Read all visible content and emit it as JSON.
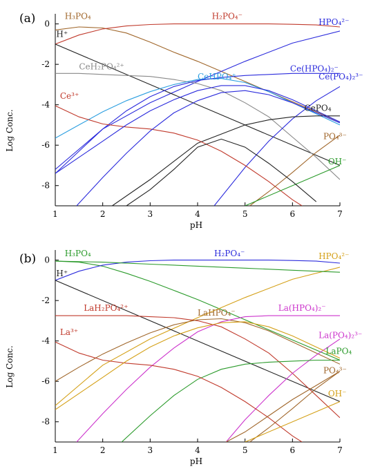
{
  "chart_data": [
    {
      "type": "line",
      "panel_label": "(a)",
      "xlabel": "pH",
      "ylabel": "Log Conc.",
      "xlim": [
        1,
        7
      ],
      "ylim": [
        -9,
        0.5
      ],
      "xticks": [
        1,
        2,
        3,
        4,
        5,
        6,
        7
      ],
      "yticks": [
        0,
        -2,
        -4,
        -6,
        -8
      ],
      "series": [
        {
          "name": "H₃PO₄",
          "color": "#a0662a",
          "label_pos": [
            1.2,
            0.25
          ],
          "x": [
            1,
            1.5,
            2,
            2.5,
            3,
            3.5,
            4,
            4.5,
            5,
            5.5,
            6,
            6.5,
            7
          ],
          "y": [
            -0.3,
            -0.15,
            -0.2,
            -0.45,
            -0.9,
            -1.4,
            -1.85,
            -2.35,
            -2.85,
            -3.35,
            -3.85,
            -4.35,
            -4.85
          ]
        },
        {
          "name": "H₂PO₄⁻",
          "color": "#c0392b",
          "label_pos": [
            4.3,
            0.25
          ],
          "x": [
            1,
            1.5,
            2,
            2.5,
            3,
            3.5,
            4,
            4.5,
            5,
            5.5,
            6,
            6.5,
            7
          ],
          "y": [
            -1.0,
            -0.55,
            -0.25,
            -0.1,
            -0.03,
            0,
            0,
            0,
            0,
            0,
            -0.02,
            -0.05,
            -0.15
          ]
        },
        {
          "name": "HPO₄²⁻",
          "color": "#2a2adc",
          "label_pos": [
            6.55,
            -0.05
          ],
          "x": [
            1,
            2,
            3,
            4,
            5,
            6,
            7
          ],
          "y": [
            -7.2,
            -5.2,
            -3.9,
            -2.85,
            -1.85,
            -0.95,
            -0.35
          ]
        },
        {
          "name": "H⁺",
          "color": "#222222",
          "label_pos": [
            1.02,
            -0.65
          ],
          "x": [
            1,
            7
          ],
          "y": [
            -1.0,
            -7.0
          ]
        },
        {
          "name": "CeH₂PO₄²⁺",
          "color": "#888888",
          "label_pos": [
            1.5,
            -2.25
          ],
          "x": [
            1,
            1.5,
            2,
            2.5,
            3,
            3.5,
            4,
            4.5,
            5,
            5.5,
            6,
            6.5,
            7
          ],
          "y": [
            -2.45,
            -2.45,
            -2.5,
            -2.55,
            -2.6,
            -2.75,
            -2.95,
            -3.3,
            -3.9,
            -4.6,
            -5.6,
            -6.6,
            -7.7
          ]
        },
        {
          "name": "CeHPO₄⁺",
          "color": "#2a9ee0",
          "label_pos": [
            4.0,
            -2.75
          ],
          "x": [
            1,
            1.5,
            2,
            2.5,
            3,
            3.5,
            4,
            4.5,
            5,
            5.5,
            6,
            6.5,
            7
          ],
          "y": [
            -5.65,
            -5.0,
            -4.35,
            -3.8,
            -3.35,
            -3.0,
            -2.75,
            -2.7,
            -2.9,
            -3.35,
            -3.9,
            -4.45,
            -5.0
          ]
        },
        {
          "name": "Ce(HPO₄)₂⁻",
          "color": "#2a2adc",
          "label_pos": [
            5.95,
            -2.35
          ],
          "x": [
            1,
            1.5,
            2,
            2.5,
            3,
            3.5,
            4,
            4.5,
            5,
            5.5,
            6,
            6.5,
            7
          ],
          "y": [
            -7.4,
            -6.3,
            -5.2,
            -4.3,
            -3.6,
            -3.1,
            -2.8,
            -2.65,
            -2.55,
            -2.5,
            -2.45,
            -2.45,
            -2.45
          ]
        },
        {
          "name": "Ce(PO₄)₂³⁻",
          "color": "#2a2adc",
          "label_pos": [
            6.55,
            -2.75
          ],
          "x": [
            4.35,
            5,
            5.5,
            6,
            6.5,
            7
          ],
          "y": [
            -9,
            -7.1,
            -5.8,
            -4.7,
            -3.8,
            -3.1
          ]
        },
        {
          "name": "CePO₄",
          "color": "#222222",
          "label_pos": [
            6.25,
            -4.3
          ],
          "x": [
            2.2,
            3,
            4,
            5,
            5.5,
            6,
            6.5,
            7
          ],
          "y": [
            -9,
            -7.7,
            -5.9,
            -5.0,
            -4.75,
            -4.6,
            -4.55,
            -4.55
          ]
        },
        {
          "name": "Ce³⁺",
          "color": "#c0392b",
          "label_pos": [
            1.1,
            -3.7
          ],
          "x": [
            1,
            1.5,
            2,
            2.5,
            3,
            3.5,
            4,
            4.5,
            5,
            5.5,
            6,
            6.2
          ],
          "y": [
            -4.05,
            -4.6,
            -4.95,
            -5.1,
            -5.2,
            -5.4,
            -5.75,
            -6.3,
            -7.0,
            -7.8,
            -8.7,
            -9
          ]
        },
        {
          "name": "PO₄³⁻",
          "color": "#a0662a",
          "label_pos": [
            6.65,
            -5.7
          ],
          "x": [
            5.1,
            5.5,
            6,
            6.5,
            7
          ],
          "y": [
            -9,
            -8.3,
            -7.35,
            -6.35,
            -5.5
          ]
        },
        {
          "name": "OH⁻",
          "color": "#2a9a2a",
          "label_pos": [
            6.75,
            -6.95
          ],
          "x": [
            5,
            7
          ],
          "y": [
            -9,
            -7.0
          ]
        },
        {
          "name": "",
          "color": "#222222",
          "label_pos": null,
          "x": [
            2.5,
            3,
            3.5,
            4,
            4.5,
            5,
            5.5,
            6,
            6.5
          ],
          "y": [
            -9,
            -8.2,
            -7.2,
            -6.1,
            -5.7,
            -6.1,
            -6.9,
            -7.8,
            -8.8
          ]
        },
        {
          "name": "",
          "color": "#2a2adc",
          "label_pos": null,
          "x": [
            1.45,
            2,
            2.5,
            3,
            3.5,
            4,
            4.5,
            5,
            5.5,
            6,
            6.5,
            7
          ],
          "y": [
            -9,
            -7.6,
            -6.4,
            -5.3,
            -4.4,
            -3.8,
            -3.4,
            -3.3,
            -3.5,
            -3.9,
            -4.4,
            -4.9
          ]
        },
        {
          "name": "",
          "color": "#2a2adc",
          "label_pos": null,
          "x": [
            1.0,
            1.5,
            2,
            2.5,
            3,
            3.5,
            4,
            4.5,
            5,
            5.5,
            6,
            6.5,
            7
          ],
          "y": [
            -7.4,
            -6.6,
            -5.8,
            -5.0,
            -4.3,
            -3.75,
            -3.3,
            -3.05,
            -3.05,
            -3.3,
            -3.75,
            -4.3,
            -4.85
          ]
        }
      ]
    },
    {
      "type": "line",
      "panel_label": "(b)",
      "xlabel": "pH",
      "ylabel": "Log Conc.",
      "xlim": [
        1,
        7
      ],
      "ylim": [
        -9,
        0.5
      ],
      "xticks": [
        1,
        2,
        3,
        4,
        5,
        6,
        7
      ],
      "yticks": [
        0,
        -2,
        -4,
        -6,
        -8
      ],
      "series": [
        {
          "name": "H₃PO₄",
          "color": "#2a9a2a",
          "label_pos": [
            1.2,
            0.2
          ],
          "x": [
            1,
            1.5,
            2,
            2.5,
            3,
            3.5,
            4,
            4.5,
            5,
            5.5,
            6,
            6.5,
            7
          ],
          "y": [
            -0.05,
            -0.1,
            -0.3,
            -0.65,
            -1.05,
            -1.5,
            -1.95,
            -2.45,
            -2.95,
            -3.45,
            -3.95,
            -4.45,
            -4.95
          ]
        },
        {
          "name": "H₂PO₄⁻",
          "color": "#2a2adc",
          "label_pos": [
            4.35,
            0.2
          ],
          "x": [
            1,
            1.5,
            2,
            2.5,
            3,
            3.5,
            4,
            4.5,
            5,
            5.5,
            6,
            6.5,
            7
          ],
          "y": [
            -1.0,
            -0.55,
            -0.25,
            -0.1,
            -0.03,
            0,
            0,
            0,
            0,
            0,
            -0.02,
            -0.05,
            -0.15
          ]
        },
        {
          "name": "HPO₄²⁻",
          "color": "#d4a017",
          "label_pos": [
            6.55,
            0.05
          ],
          "x": [
            1,
            2,
            3,
            4,
            5,
            6,
            7
          ],
          "y": [
            -7.2,
            -5.2,
            -3.9,
            -2.85,
            -1.85,
            -0.95,
            -0.35
          ]
        },
        {
          "name": "H⁺",
          "color": "#222222",
          "label_pos": [
            1.02,
            -0.8
          ],
          "x": [
            1,
            7
          ],
          "y": [
            -1.0,
            -7.0
          ]
        },
        {
          "name": "LaH₂PO₄²⁺",
          "color": "#c0392b",
          "label_pos": [
            1.6,
            -2.5
          ],
          "x": [
            1,
            1.5,
            2,
            2.5,
            3,
            3.5,
            4,
            4.5,
            5,
            5.5,
            6,
            6.5,
            7
          ],
          "y": [
            -2.75,
            -2.75,
            -2.75,
            -2.75,
            -2.8,
            -2.85,
            -3.0,
            -3.3,
            -3.9,
            -4.6,
            -5.6,
            -6.7,
            -7.8
          ]
        },
        {
          "name": "LaHPO₄⁻",
          "color": "#a0662a",
          "label_pos": [
            4.0,
            -2.75
          ],
          "x": [
            1,
            1.5,
            2,
            2.5,
            3,
            3.5,
            4,
            4.5,
            5,
            5.5,
            6,
            6.5,
            7
          ],
          "y": [
            -6.0,
            -5.3,
            -4.65,
            -4.1,
            -3.6,
            -3.2,
            -2.95,
            -2.9,
            -3.1,
            -3.5,
            -4.05,
            -4.6,
            -5.15
          ]
        },
        {
          "name": "La(HPO₄)₂⁻",
          "color": "#cc33cc",
          "label_pos": [
            5.7,
            -2.5
          ],
          "x": [
            1.45,
            2,
            2.5,
            3,
            3.5,
            4,
            4.5,
            5,
            5.5,
            6,
            6.5,
            7
          ],
          "y": [
            -9,
            -7.6,
            -6.4,
            -5.3,
            -4.35,
            -3.55,
            -3.05,
            -2.8,
            -2.75,
            -2.75,
            -2.75,
            -2.75
          ]
        },
        {
          "name": "La(PO₄)₂³⁻",
          "color": "#cc33cc",
          "label_pos": [
            6.55,
            -3.85
          ],
          "x": [
            4.6,
            5,
            5.5,
            6,
            6.5,
            7
          ],
          "y": [
            -9,
            -7.9,
            -6.7,
            -5.6,
            -4.7,
            -3.9
          ]
        },
        {
          "name": "LaPO₄",
          "color": "#2a9a2a",
          "label_pos": [
            6.7,
            -4.65
          ],
          "x": [
            2.4,
            3,
            3.5,
            4,
            4.5,
            5,
            5.5,
            6,
            6.5,
            7
          ],
          "y": [
            -9,
            -7.7,
            -6.7,
            -5.9,
            -5.4,
            -5.15,
            -5.05,
            -5.0,
            -4.95,
            -4.95
          ]
        },
        {
          "name": "La³⁺",
          "color": "#c0392b",
          "label_pos": [
            1.1,
            -3.7
          ],
          "x": [
            1,
            1.5,
            2,
            2.5,
            3,
            3.5,
            4,
            4.5,
            5,
            5.5,
            6,
            6.2
          ],
          "y": [
            -4.05,
            -4.6,
            -4.95,
            -5.1,
            -5.2,
            -5.4,
            -5.75,
            -6.3,
            -7.0,
            -7.8,
            -8.7,
            -9
          ]
        },
        {
          "name": "PO₄³⁻",
          "color": "#a0662a",
          "label_pos": [
            6.65,
            -5.6
          ],
          "x": [
            5.1,
            5.5,
            6,
            6.5,
            7
          ],
          "y": [
            -9,
            -8.3,
            -7.35,
            -6.35,
            -5.5
          ]
        },
        {
          "name": "OH⁻",
          "color": "#d4a017",
          "label_pos": [
            6.75,
            -6.75
          ],
          "x": [
            5,
            7
          ],
          "y": [
            -9,
            -7.0
          ]
        },
        {
          "name": "",
          "color": "#d4a017",
          "label_pos": null,
          "x": [
            1,
            1.5,
            2,
            2.5,
            3,
            3.5,
            4,
            4.5,
            5,
            5.5,
            6,
            6.5,
            7
          ],
          "y": [
            -7.4,
            -6.6,
            -5.8,
            -5.0,
            -4.3,
            -3.75,
            -3.35,
            -3.1,
            -3.05,
            -3.3,
            -3.75,
            -4.3,
            -4.85
          ]
        },
        {
          "name": "",
          "color": "#a0662a",
          "label_pos": null,
          "x": [
            4.6,
            5,
            5.5,
            6,
            6.5,
            7
          ],
          "y": [
            -9,
            -8.5,
            -7.7,
            -6.9,
            -6.2,
            -5.5
          ]
        },
        {
          "name": "",
          "color": "#2a9a2a",
          "label_pos": null,
          "x": [
            1.0,
            2,
            3,
            4,
            5,
            6,
            7
          ],
          "y": [
            -0.05,
            -0.1,
            -0.2,
            -0.3,
            -0.4,
            -0.5,
            -0.6
          ]
        }
      ]
    }
  ]
}
